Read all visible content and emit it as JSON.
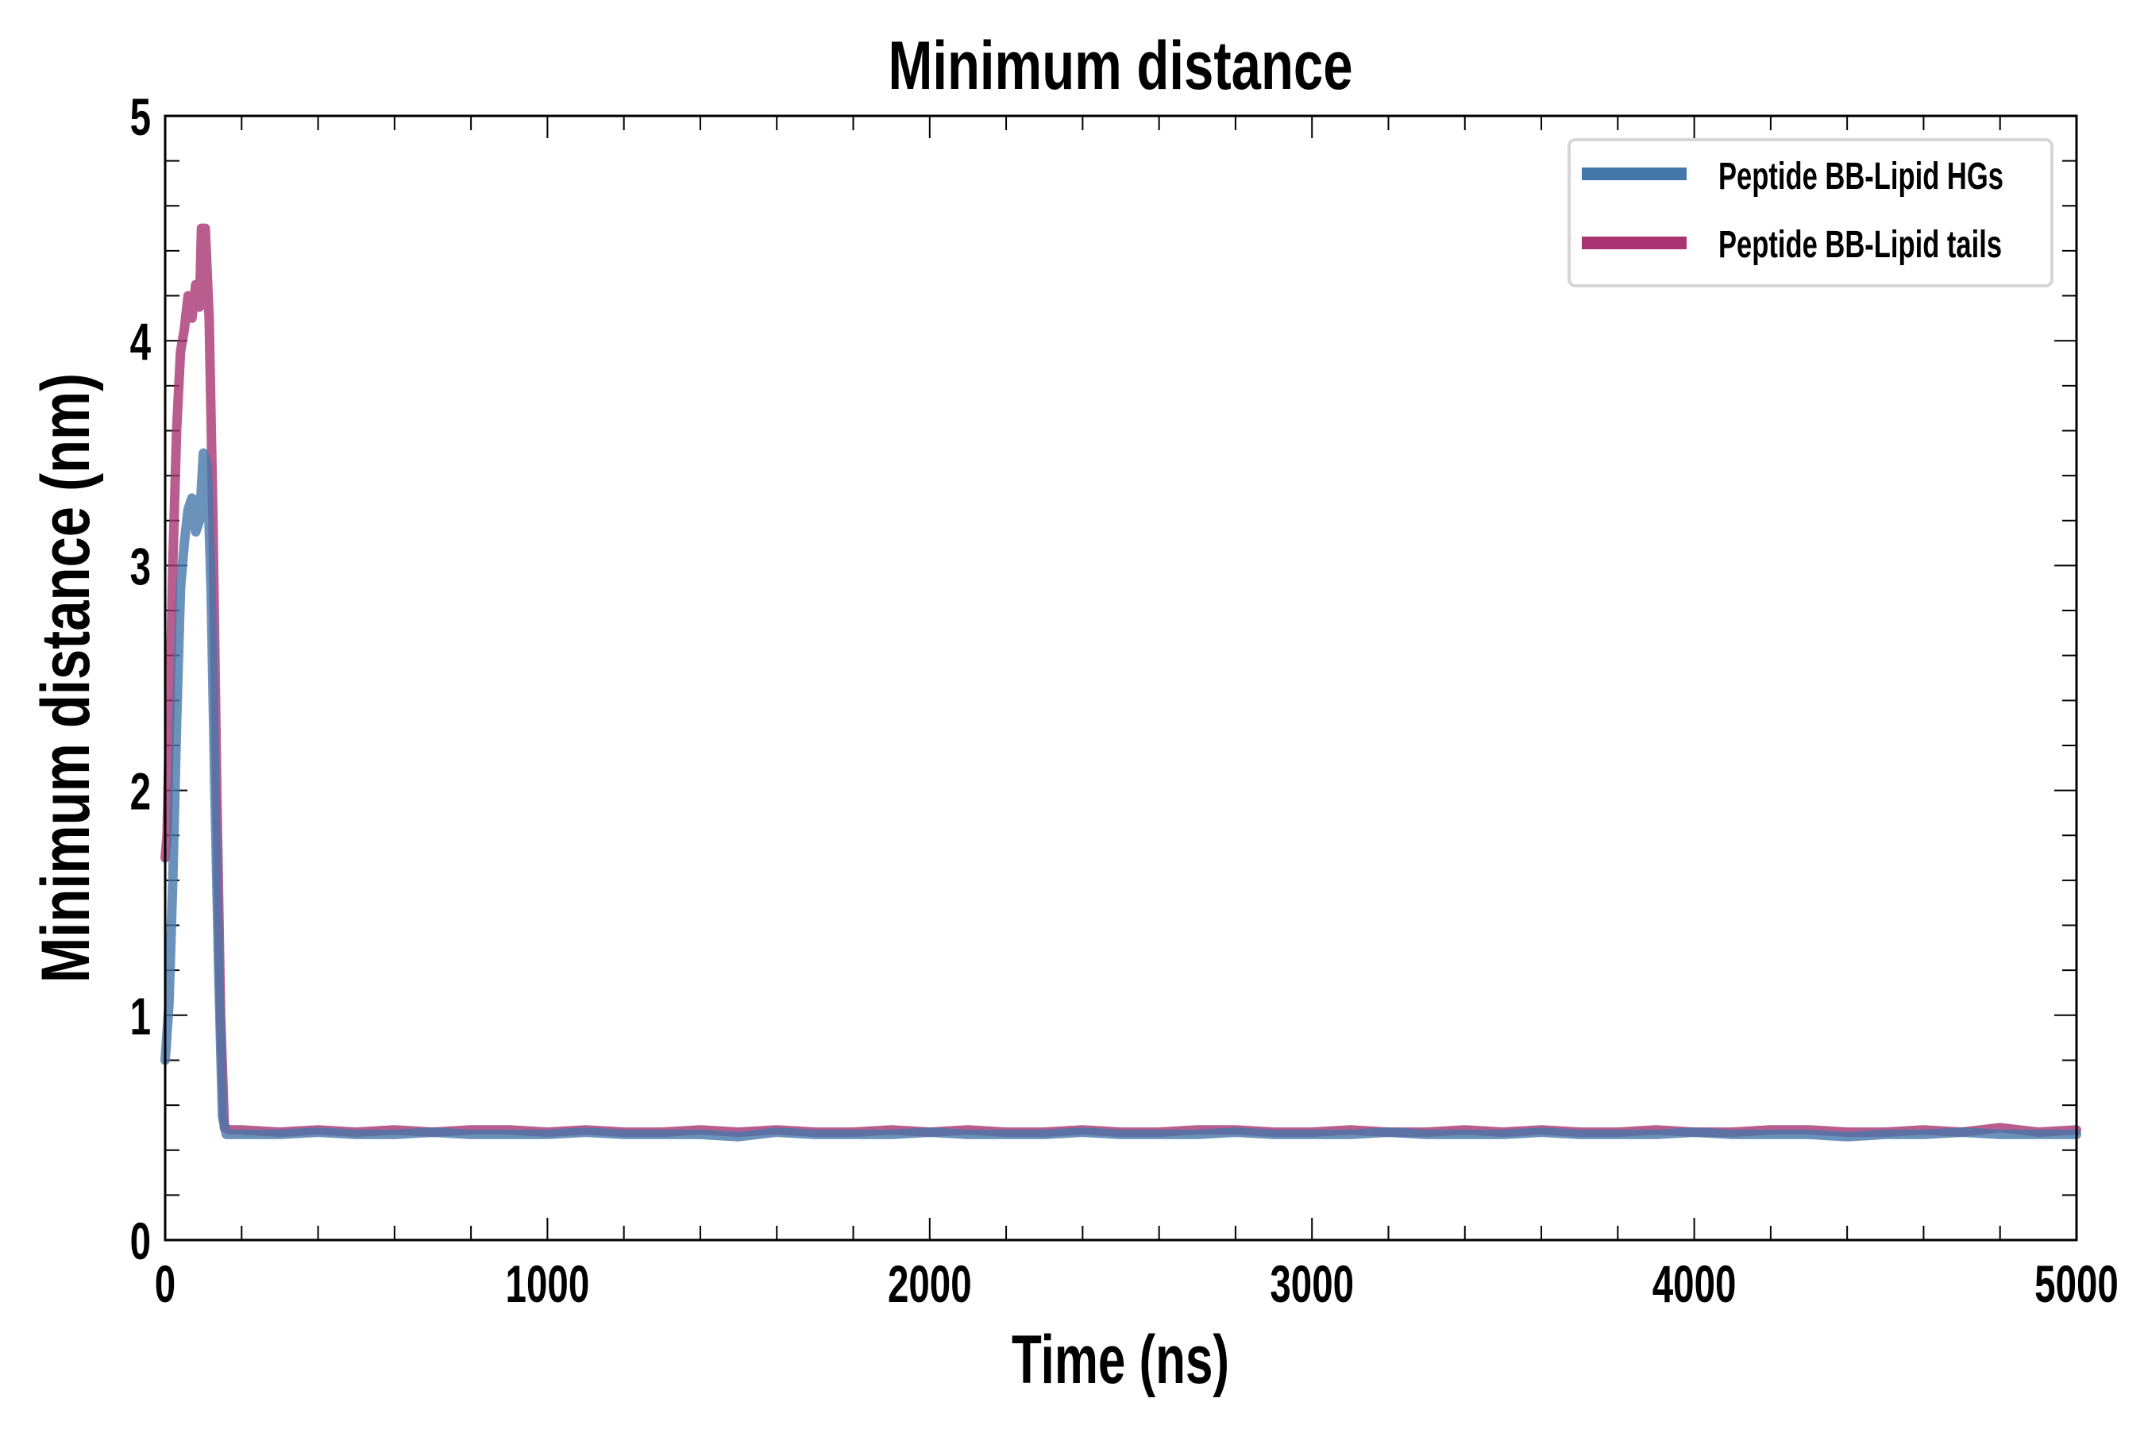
{
  "chart_data": {
    "type": "line",
    "title": "Minimum distance",
    "xlabel": "Time (ns)",
    "ylabel": "Minimum distance (nm)",
    "xlim": [
      0,
      5000
    ],
    "ylim": [
      0,
      5
    ],
    "xticks": [
      "0",
      "1000",
      "2000",
      "3000",
      "4000",
      "5000"
    ],
    "yticks": [
      "0",
      "1",
      "2",
      "3",
      "4",
      "5"
    ],
    "grid": false,
    "legend_position": "top-right",
    "series": [
      {
        "name": "Peptide BB-Lipid HGs",
        "color": "#4677aa",
        "x": [
          0,
          10,
          20,
          30,
          40,
          50,
          60,
          70,
          80,
          90,
          100,
          110,
          120,
          130,
          140,
          150,
          160,
          200,
          300,
          400,
          500,
          600,
          700,
          800,
          900,
          1000,
          1100,
          1200,
          1300,
          1400,
          1500,
          1600,
          1700,
          1800,
          1900,
          2000,
          2100,
          2200,
          2300,
          2400,
          2500,
          2600,
          2700,
          2800,
          2900,
          3000,
          3100,
          3200,
          3300,
          3400,
          3500,
          3600,
          3700,
          3800,
          3900,
          4000,
          4100,
          4200,
          4300,
          4400,
          4500,
          4600,
          4700,
          4800,
          4900,
          5000
        ],
        "y": [
          0.8,
          1.05,
          1.6,
          2.3,
          2.9,
          3.1,
          3.25,
          3.3,
          3.15,
          3.2,
          3.5,
          3.45,
          2.9,
          2.0,
          1.2,
          0.55,
          0.47,
          0.47,
          0.47,
          0.48,
          0.47,
          0.47,
          0.48,
          0.47,
          0.47,
          0.47,
          0.48,
          0.47,
          0.47,
          0.47,
          0.46,
          0.48,
          0.47,
          0.47,
          0.47,
          0.48,
          0.47,
          0.47,
          0.47,
          0.48,
          0.47,
          0.47,
          0.47,
          0.48,
          0.47,
          0.47,
          0.47,
          0.48,
          0.47,
          0.47,
          0.47,
          0.48,
          0.47,
          0.47,
          0.47,
          0.48,
          0.47,
          0.47,
          0.47,
          0.46,
          0.47,
          0.47,
          0.48,
          0.47,
          0.47,
          0.47
        ]
      },
      {
        "name": "Peptide BB-Lipid tails",
        "color": "#a83472",
        "x": [
          0,
          5,
          10,
          20,
          30,
          40,
          50,
          60,
          70,
          80,
          90,
          95,
          105,
          115,
          125,
          135,
          145,
          155,
          170,
          200,
          300,
          400,
          500,
          600,
          700,
          800,
          900,
          1000,
          1100,
          1200,
          1300,
          1400,
          1500,
          1600,
          1700,
          1800,
          1900,
          2000,
          2100,
          2200,
          2300,
          2400,
          2500,
          2600,
          2700,
          2800,
          2900,
          3000,
          3100,
          3200,
          3300,
          3400,
          3500,
          3600,
          3700,
          3800,
          3900,
          4000,
          4100,
          4200,
          4300,
          4400,
          4500,
          4600,
          4700,
          4800,
          4900,
          5000
        ],
        "y": [
          1.7,
          1.8,
          2.2,
          3.0,
          3.6,
          3.95,
          4.05,
          4.2,
          4.1,
          4.25,
          4.15,
          4.5,
          4.5,
          4.1,
          3.2,
          2.0,
          1.0,
          0.5,
          0.49,
          0.49,
          0.48,
          0.49,
          0.48,
          0.49,
          0.48,
          0.49,
          0.49,
          0.48,
          0.49,
          0.48,
          0.48,
          0.49,
          0.48,
          0.49,
          0.48,
          0.48,
          0.49,
          0.48,
          0.49,
          0.48,
          0.48,
          0.49,
          0.48,
          0.48,
          0.49,
          0.49,
          0.48,
          0.48,
          0.49,
          0.48,
          0.48,
          0.49,
          0.48,
          0.49,
          0.48,
          0.48,
          0.49,
          0.48,
          0.48,
          0.49,
          0.49,
          0.48,
          0.48,
          0.49,
          0.48,
          0.5,
          0.48,
          0.49
        ]
      }
    ]
  }
}
